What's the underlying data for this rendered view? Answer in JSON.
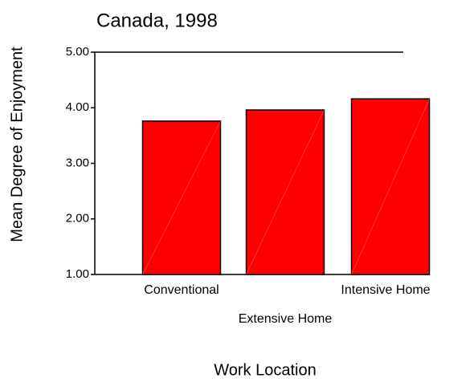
{
  "chart_data": {
    "type": "bar",
    "title": "Canada, 1998",
    "x_label": "Work Location",
    "y_label": "Mean Degree of Enjoyment",
    "categories": [
      "Conventional",
      "Extensive Home",
      "Intensive Home"
    ],
    "values": [
      3.76,
      3.96,
      4.16
    ],
    "color": "#ff0000",
    "ylim": [
      1,
      5
    ],
    "yticks": [
      {
        "value": 1,
        "label": "1.00"
      },
      {
        "value": 2,
        "label": "2.00"
      },
      {
        "value": 3,
        "label": "3.00"
      },
      {
        "value": 4,
        "label": "4.00"
      },
      {
        "value": 5,
        "label": "5.00"
      }
    ],
    "grid": false
  }
}
